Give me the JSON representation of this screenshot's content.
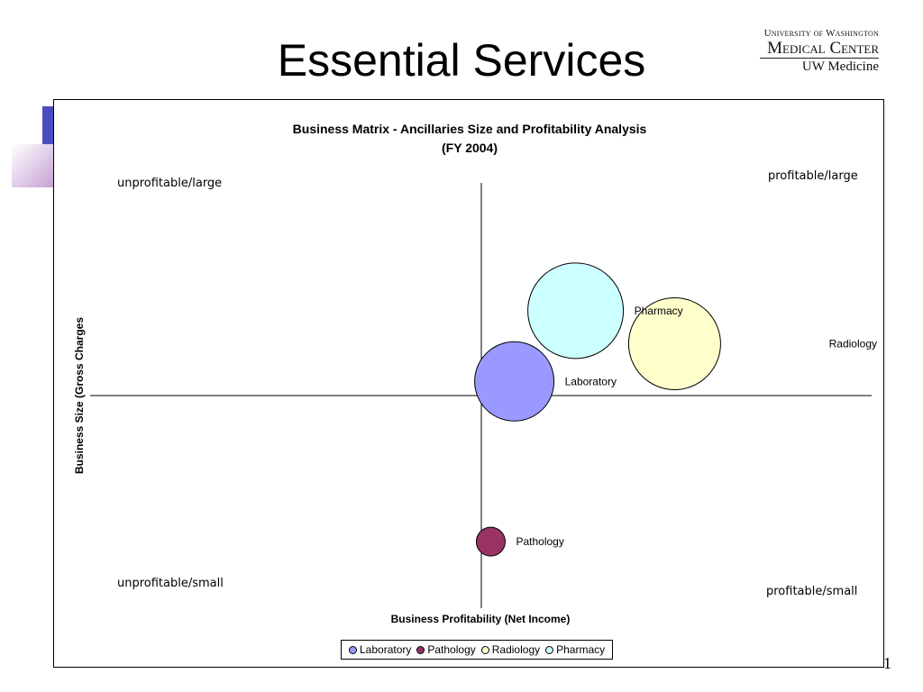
{
  "slide": {
    "title": "Essential Services",
    "page_number": "1"
  },
  "logo": {
    "line1": "University of Washington",
    "line2": "Medical Center",
    "line3": "UW Medicine"
  },
  "chart_data": {
    "type": "bubble",
    "title_line1": "Business Matrix - Ancillaries Size and Profitability Analysis",
    "title_line2": "(FY 2004)",
    "xlabel": "Business Profitability (Net Income)",
    "ylabel": "Business Size (Gross Charges",
    "xlim": [
      -5,
      5
    ],
    "ylim": [
      -5,
      5
    ],
    "grid": false,
    "legend_position": "bottom",
    "quadrants": {
      "top_left": "unprofitable/large",
      "top_right": "profitable/large",
      "bottom_left": "unprofitable/small",
      "bottom_right": "profitable/small"
    },
    "series": [
      {
        "name": "Laboratory",
        "x": 0.7,
        "y": 0.3,
        "size": 44,
        "color": "#9999ff"
      },
      {
        "name": "Pathology",
        "x": 0.2,
        "y": -3.1,
        "size": 16,
        "color": "#993366"
      },
      {
        "name": "Radiology",
        "x": 4.1,
        "y": 1.1,
        "size": 51,
        "color": "#ffffcc"
      },
      {
        "name": "Pharmacy",
        "x": 2.0,
        "y": 1.8,
        "size": 53,
        "color": "#ccffff"
      }
    ]
  }
}
